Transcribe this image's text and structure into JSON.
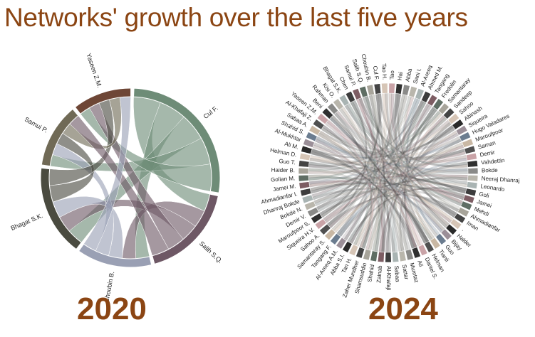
{
  "title": "Networks' growth over the last five years",
  "colors": {
    "title": "#8b4513"
  },
  "chart_data": [
    {
      "type": "chord",
      "label": "2020",
      "nodes": [
        {
          "name": "Cul F.",
          "weight": 28,
          "color": "#6e8c77"
        },
        {
          "name": "Salih S.Q.",
          "weight": 18,
          "color": "#6e5865"
        },
        {
          "name": "Choubin B.",
          "weight": 14,
          "color": "#9aa0b4"
        },
        {
          "name": "Bhagat S.K.",
          "weight": 17,
          "color": "#4a4b40"
        },
        {
          "name": "Samui P.",
          "weight": 12,
          "color": "#706a56"
        },
        {
          "name": "Yaseen Z.M.",
          "weight": 11,
          "color": "#6e4636"
        }
      ]
    },
    {
      "type": "chord",
      "label": "2024",
      "nodes": [
        "Tao",
        "Hai",
        "Abba",
        "Sani I.",
        "Al-Areeq",
        "Ahmed M.",
        "Tangang",
        "Fredolin",
        "Samantaray",
        "Sandeep",
        "Sahoo",
        "Abinash",
        "Siqueira",
        "Hugo Valadares",
        "Maroufpoor",
        "Saman",
        "Demir",
        "Vahdettin",
        "Bokde",
        "Neeraj Dhanraj",
        "Leonardo",
        "Goli",
        "Jamei",
        "Mehdi",
        "Ahmadianfar",
        "Iman",
        ".",
        "Halder",
        "Bijay",
        "Guo",
        "Tianli",
        "Helman",
        "Daniel S.",
        "Ali",
        "Mumtaz",
        "Sattar",
        "Sabaa",
        "Al-Khafaji",
        "Zainab",
        "Shahid",
        "Shamsuddin",
        "Zaher Mundher",
        "Tan H.",
        "Abba S.I.",
        "Al-Areeq A.M.",
        "Tangang F.",
        "Samantaray S.",
        "Sahoo A.",
        "Siqueira H.V.",
        "Maroufpoor S.",
        "Demir V.",
        "Bokde N.",
        "Dhanraj Bokde",
        "Ahmadianfar I.",
        "Jamei M.",
        "Golian M.",
        "Haider B.",
        "Guo T.",
        "Helman D.",
        "Ali M.",
        "Al-Mukhtar",
        "Shahid S.",
        "Sabaa A.",
        "Al-Khafaji Z.",
        "Yaseen Z.M.",
        "Beni",
        "Rahman",
        "Kisi O.",
        "Bhagat S.K.",
        "Chen",
        "Samui P.",
        "Salih S.Q.",
        "Choubin B.",
        "Cul F.",
        "Tao H."
      ]
    }
  ]
}
